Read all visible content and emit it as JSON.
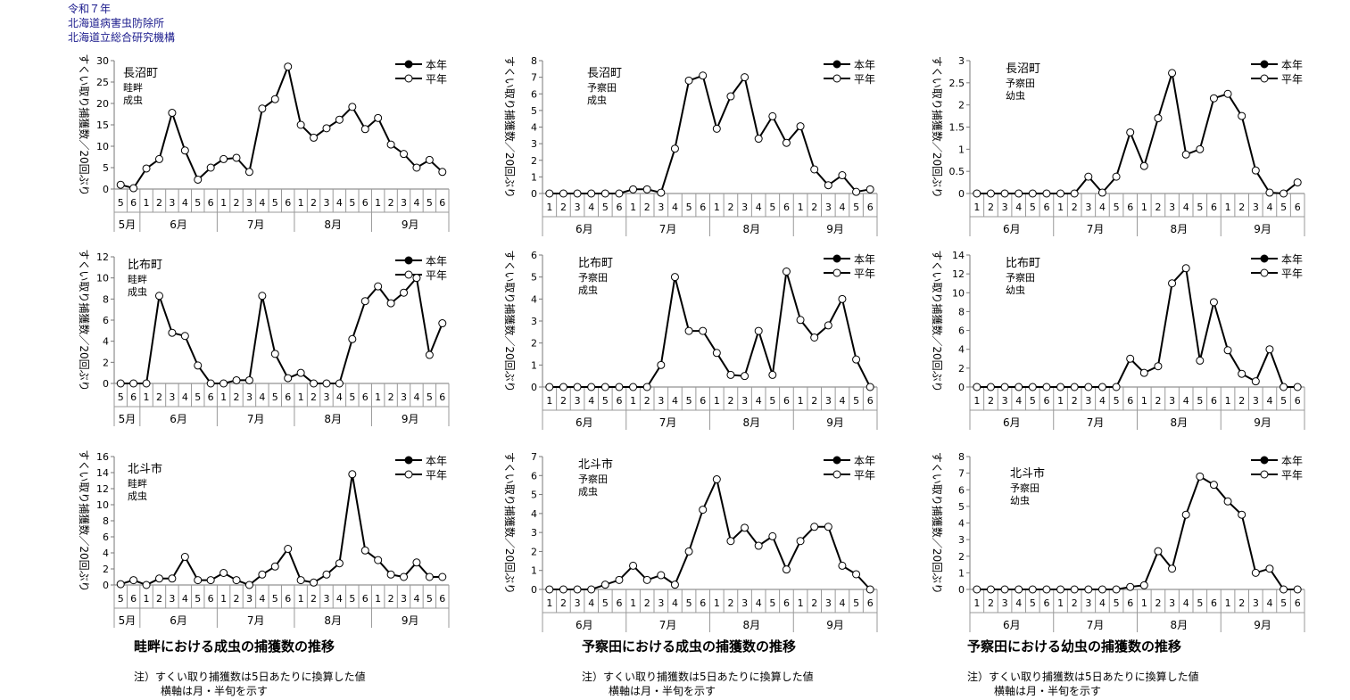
{
  "header": {
    "line1": "令和７年",
    "line2": "北海道病害虫防除所",
    "line3": "北海道立総合研究機構"
  },
  "legend": {
    "this_year": "本年",
    "avg_year": "平年"
  },
  "ylabel": "すくい取り捕獲数／20回ぶり",
  "captions": [
    "畦畔における成虫の捕獲数の推移",
    "予察田における成虫の捕獲数の推移",
    "予察田における幼虫の捕獲数の推移"
  ],
  "notes": {
    "line1": "注）すくい取り捕獲数は5日あたりに換算した値",
    "line2": "横軸は月・半旬を示す"
  },
  "chart_data": [
    {
      "type": "line",
      "location": "長沼町",
      "field": "畦畔",
      "stage": "成虫",
      "ylim": [
        0,
        30
      ],
      "yticks": [
        0,
        5,
        10,
        15,
        20,
        25,
        30
      ],
      "pentads": [
        "5",
        "6",
        "1",
        "2",
        "3",
        "4",
        "5",
        "6",
        "1",
        "2",
        "3",
        "4",
        "5",
        "6",
        "1",
        "2",
        "3",
        "4",
        "5",
        "6",
        "1",
        "2",
        "3",
        "4",
        "5",
        "6"
      ],
      "months": [
        {
          "label": "5月",
          "count": 2
        },
        {
          "label": "6月",
          "count": 6
        },
        {
          "label": "7月",
          "count": 6
        },
        {
          "label": "8月",
          "count": 6
        },
        {
          "label": "9月",
          "count": 6
        }
      ],
      "series": [
        {
          "name": "本年",
          "values": []
        },
        {
          "name": "平年",
          "values": [
            1,
            0.2,
            4.8,
            7,
            17.8,
            9,
            2.2,
            5,
            7,
            7.3,
            4,
            18.8,
            21,
            28.6,
            15,
            12,
            14.2,
            16.2,
            19.2,
            14,
            16.6,
            10.4,
            8.2,
            5,
            6.8,
            4
          ]
        }
      ]
    },
    {
      "type": "line",
      "location": "長沼町",
      "field": "予察田",
      "stage": "成虫",
      "ylim": [
        0,
        8
      ],
      "yticks": [
        0,
        1,
        2,
        3,
        4,
        5,
        6,
        7,
        8
      ],
      "pentads": [
        "1",
        "2",
        "3",
        "4",
        "5",
        "6",
        "1",
        "2",
        "3",
        "4",
        "5",
        "6",
        "1",
        "2",
        "3",
        "4",
        "5",
        "6",
        "1",
        "2",
        "3",
        "4",
        "5",
        "6"
      ],
      "months": [
        {
          "label": "6月",
          "count": 6
        },
        {
          "label": "7月",
          "count": 6
        },
        {
          "label": "8月",
          "count": 6
        },
        {
          "label": "9月",
          "count": 6
        }
      ],
      "series": [
        {
          "name": "本年",
          "values": []
        },
        {
          "name": "平年",
          "values": [
            0,
            0,
            0,
            0,
            0,
            0,
            0.25,
            0.25,
            0.05,
            2.7,
            6.8,
            7.1,
            3.9,
            5.85,
            7,
            3.3,
            4.65,
            3.05,
            4.05,
            1.45,
            0.5,
            1.1,
            0.1,
            0.25
          ]
        }
      ]
    },
    {
      "type": "line",
      "location": "長沼町",
      "field": "予察田",
      "stage": "幼虫",
      "ylim": [
        0,
        3
      ],
      "yticks": [
        0,
        0.5,
        1,
        1.5,
        2,
        2.5,
        3
      ],
      "pentads": [
        "1",
        "2",
        "3",
        "4",
        "5",
        "6",
        "1",
        "2",
        "3",
        "4",
        "5",
        "6",
        "1",
        "2",
        "3",
        "4",
        "5",
        "6",
        "1",
        "2",
        "3",
        "4",
        "5",
        "6"
      ],
      "months": [
        {
          "label": "6月",
          "count": 6
        },
        {
          "label": "7月",
          "count": 6
        },
        {
          "label": "8月",
          "count": 6
        },
        {
          "label": "9月",
          "count": 6
        }
      ],
      "series": [
        {
          "name": "本年",
          "values": []
        },
        {
          "name": "平年",
          "values": [
            0,
            0,
            0,
            0,
            0,
            0,
            0,
            0,
            0.38,
            0.02,
            0.38,
            1.38,
            0.62,
            1.7,
            2.72,
            0.88,
            1,
            2.15,
            2.25,
            1.75,
            0.52,
            0.02,
            0,
            0.25
          ]
        }
      ]
    },
    {
      "type": "line",
      "location": "比布町",
      "field": "畦畔",
      "stage": "成虫",
      "ylim": [
        0,
        12
      ],
      "yticks": [
        0,
        2,
        4,
        6,
        8,
        10,
        12
      ],
      "pentads": [
        "5",
        "6",
        "1",
        "2",
        "3",
        "4",
        "5",
        "6",
        "1",
        "2",
        "3",
        "4",
        "5",
        "6",
        "1",
        "2",
        "3",
        "4",
        "5",
        "6",
        "1",
        "2",
        "3",
        "4",
        "5",
        "6"
      ],
      "months": [
        {
          "label": "5月",
          "count": 2
        },
        {
          "label": "6月",
          "count": 6
        },
        {
          "label": "7月",
          "count": 6
        },
        {
          "label": "8月",
          "count": 6
        },
        {
          "label": "9月",
          "count": 6
        }
      ],
      "series": [
        {
          "name": "本年",
          "values": []
        },
        {
          "name": "平年",
          "values": [
            0,
            0,
            0,
            8.3,
            4.8,
            4.5,
            1.7,
            0,
            0,
            0.3,
            0.3,
            8.3,
            2.8,
            0.5,
            1,
            0,
            0,
            0,
            4.2,
            7.8,
            9.2,
            7.6,
            8.6,
            10,
            2.7,
            5.7
          ]
        }
      ]
    },
    {
      "type": "line",
      "location": "比布町",
      "field": "予察田",
      "stage": "成虫",
      "ylim": [
        0,
        6
      ],
      "yticks": [
        0,
        1,
        2,
        3,
        4,
        5,
        6
      ],
      "pentads": [
        "1",
        "2",
        "3",
        "4",
        "5",
        "6",
        "1",
        "2",
        "3",
        "4",
        "5",
        "6",
        "1",
        "2",
        "3",
        "4",
        "5",
        "6",
        "1",
        "2",
        "3",
        "4",
        "5",
        "6"
      ],
      "months": [
        {
          "label": "6月",
          "count": 6
        },
        {
          "label": "7月",
          "count": 6
        },
        {
          "label": "8月",
          "count": 6
        },
        {
          "label": "9月",
          "count": 6
        }
      ],
      "series": [
        {
          "name": "本年",
          "values": []
        },
        {
          "name": "平年",
          "values": [
            0,
            0,
            0,
            0,
            0,
            0,
            0,
            0,
            1,
            5,
            2.55,
            2.55,
            1.55,
            0.55,
            0.5,
            2.55,
            0.55,
            5.25,
            3.05,
            2.25,
            2.8,
            4,
            1.25,
            0
          ]
        }
      ]
    },
    {
      "type": "line",
      "location": "比布町",
      "field": "予察田",
      "stage": "幼虫",
      "ylim": [
        0,
        14
      ],
      "yticks": [
        0,
        2,
        4,
        6,
        8,
        10,
        12,
        14
      ],
      "pentads": [
        "1",
        "2",
        "3",
        "4",
        "5",
        "6",
        "1",
        "2",
        "3",
        "4",
        "5",
        "6",
        "1",
        "2",
        "3",
        "4",
        "5",
        "6",
        "1",
        "2",
        "3",
        "4",
        "5",
        "6"
      ],
      "months": [
        {
          "label": "6月",
          "count": 6
        },
        {
          "label": "7月",
          "count": 6
        },
        {
          "label": "8月",
          "count": 6
        },
        {
          "label": "9月",
          "count": 6
        }
      ],
      "series": [
        {
          "name": "本年",
          "values": []
        },
        {
          "name": "平年",
          "values": [
            0,
            0,
            0,
            0,
            0,
            0,
            0,
            0,
            0,
            0,
            0,
            3,
            1.5,
            2.2,
            11,
            12.6,
            2.8,
            9,
            3.9,
            1.4,
            0.6,
            4,
            0,
            0
          ]
        }
      ]
    },
    {
      "type": "line",
      "location": "北斗市",
      "field": "畦畔",
      "stage": "成虫",
      "ylim": [
        0,
        16
      ],
      "yticks": [
        0,
        2,
        4,
        6,
        8,
        10,
        12,
        14,
        16
      ],
      "pentads": [
        "5",
        "6",
        "1",
        "2",
        "3",
        "4",
        "5",
        "6",
        "1",
        "2",
        "3",
        "4",
        "5",
        "6",
        "1",
        "2",
        "3",
        "4",
        "5",
        "6",
        "1",
        "2",
        "3",
        "4",
        "5",
        "6"
      ],
      "months": [
        {
          "label": "5月",
          "count": 2
        },
        {
          "label": "6月",
          "count": 6
        },
        {
          "label": "7月",
          "count": 6
        },
        {
          "label": "8月",
          "count": 6
        },
        {
          "label": "9月",
          "count": 6
        }
      ],
      "series": [
        {
          "name": "本年",
          "values": []
        },
        {
          "name": "平年",
          "values": [
            0.1,
            0.6,
            0,
            0.8,
            0.8,
            3.5,
            0.6,
            0.6,
            1.5,
            0.6,
            0,
            1.3,
            2.3,
            4.5,
            0.6,
            0.3,
            1.3,
            2.7,
            13.8,
            4.3,
            3.1,
            1.3,
            1,
            2.8,
            1,
            1
          ]
        }
      ]
    },
    {
      "type": "line",
      "location": "北斗市",
      "field": "予察田",
      "stage": "成虫",
      "ylim": [
        0,
        7
      ],
      "yticks": [
        0,
        1,
        2,
        3,
        4,
        5,
        6,
        7
      ],
      "pentads": [
        "1",
        "2",
        "3",
        "4",
        "5",
        "6",
        "1",
        "2",
        "3",
        "4",
        "5",
        "6",
        "1",
        "2",
        "3",
        "4",
        "5",
        "6",
        "1",
        "2",
        "3",
        "4",
        "5",
        "6"
      ],
      "months": [
        {
          "label": "6月",
          "count": 6
        },
        {
          "label": "7月",
          "count": 6
        },
        {
          "label": "8月",
          "count": 6
        },
        {
          "label": "9月",
          "count": 6
        }
      ],
      "series": [
        {
          "name": "本年",
          "values": []
        },
        {
          "name": "平年",
          "values": [
            0,
            0,
            0,
            0,
            0.25,
            0.5,
            1.25,
            0.5,
            0.75,
            0.25,
            2,
            4.2,
            5.8,
            2.55,
            3.25,
            2.3,
            2.8,
            1.05,
            2.55,
            3.3,
            3.3,
            1.25,
            0.8,
            0
          ]
        }
      ]
    },
    {
      "type": "line",
      "location": "北斗市",
      "field": "予察田",
      "stage": "幼虫",
      "ylim": [
        0,
        8
      ],
      "yticks": [
        0,
        1,
        2,
        3,
        4,
        5,
        6,
        7,
        8
      ],
      "pentads": [
        "1",
        "2",
        "3",
        "4",
        "5",
        "6",
        "1",
        "2",
        "3",
        "4",
        "5",
        "6",
        "1",
        "2",
        "3",
        "4",
        "5",
        "6",
        "1",
        "2",
        "3",
        "4",
        "5",
        "6"
      ],
      "months": [
        {
          "label": "6月",
          "count": 6
        },
        {
          "label": "7月",
          "count": 6
        },
        {
          "label": "8月",
          "count": 6
        },
        {
          "label": "9月",
          "count": 6
        }
      ],
      "series": [
        {
          "name": "本年",
          "values": []
        },
        {
          "name": "平年",
          "values": [
            0,
            0,
            0,
            0,
            0,
            0,
            0,
            0,
            0,
            0,
            0,
            0.15,
            0.25,
            2.3,
            1.25,
            4.5,
            6.8,
            6.3,
            5.3,
            4.5,
            1,
            1.25,
            0,
            0
          ]
        }
      ]
    }
  ]
}
